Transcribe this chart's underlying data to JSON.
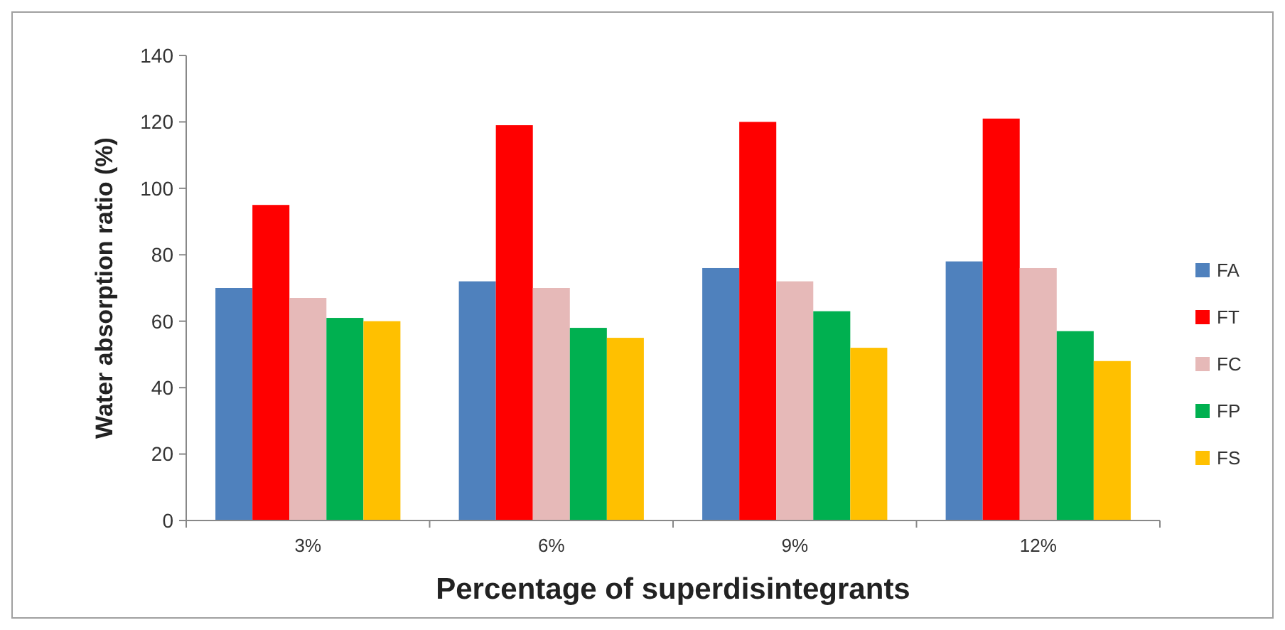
{
  "chart_data": {
    "type": "bar",
    "xlabel": "Percentage of superdisintegrants",
    "ylabel": "Water absorption  ratio (%)",
    "categories": [
      "3%",
      "6%",
      "9%",
      "12%"
    ],
    "series": [
      {
        "name": "FA",
        "color": "#4f81bd",
        "values": [
          70,
          72,
          76,
          78
        ]
      },
      {
        "name": "FT",
        "color": "#ff0000",
        "values": [
          95,
          119,
          120,
          121
        ]
      },
      {
        "name": "FC",
        "color": "#e6b9b8",
        "values": [
          67,
          70,
          72,
          76
        ]
      },
      {
        "name": "FP",
        "color": "#00b050",
        "values": [
          61,
          58,
          63,
          57
        ]
      },
      {
        "name": "FS",
        "color": "#ffc000",
        "values": [
          60,
          55,
          52,
          48
        ]
      }
    ],
    "ylim": [
      0,
      140
    ],
    "yticks": [
      0,
      20,
      40,
      60,
      80,
      100,
      120,
      140
    ],
    "grid": false,
    "legend": "right"
  }
}
